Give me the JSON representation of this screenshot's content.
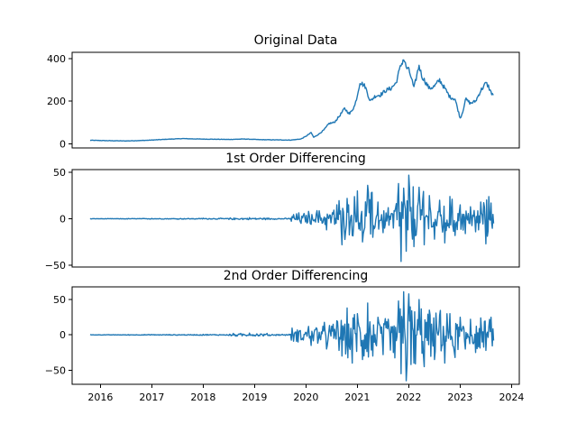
{
  "chart_data": [
    {
      "type": "line",
      "title": "Original Data",
      "xlabel": "",
      "ylabel": "",
      "xlim": [
        2015.45,
        2024.15
      ],
      "ylim": [
        -20,
        430
      ],
      "yticks": [
        0,
        200,
        400
      ],
      "show_xticks": false,
      "series": [
        {
          "name": "Original Data",
          "x": [
            2015.8,
            2016.0,
            2016.2,
            2016.5,
            2016.8,
            2017.0,
            2017.3,
            2017.6,
            2017.9,
            2018.2,
            2018.5,
            2018.8,
            2019.1,
            2019.4,
            2019.7,
            2019.9,
            2020.0,
            2020.1,
            2020.15,
            2020.25,
            2020.35,
            2020.45,
            2020.55,
            2020.65,
            2020.75,
            2020.85,
            2020.95,
            2021.0,
            2021.05,
            2021.15,
            2021.25,
            2021.35,
            2021.45,
            2021.55,
            2021.65,
            2021.75,
            2021.8,
            2021.85,
            2021.9,
            2021.95,
            2022.0,
            2022.05,
            2022.1,
            2022.2,
            2022.25,
            2022.3,
            2022.4,
            2022.5,
            2022.6,
            2022.7,
            2022.8,
            2022.9,
            2023.0,
            2023.05,
            2023.1,
            2023.2,
            2023.3,
            2023.4,
            2023.5,
            2023.55,
            2023.6,
            2023.65
          ],
          "y": [
            16,
            15,
            14,
            13,
            15,
            17,
            21,
            24,
            22,
            21,
            20,
            22,
            19,
            18,
            17,
            22,
            35,
            52,
            30,
            45,
            65,
            95,
            100,
            130,
            165,
            140,
            180,
            230,
            290,
            270,
            200,
            225,
            230,
            250,
            260,
            285,
            330,
            370,
            400,
            360,
            345,
            310,
            260,
            370,
            320,
            300,
            260,
            270,
            300,
            260,
            220,
            210,
            120,
            150,
            210,
            190,
            200,
            250,
            285,
            270,
            240,
            230
          ]
        }
      ]
    },
    {
      "type": "line",
      "title": "1st Order Differencing",
      "xlabel": "",
      "ylabel": "",
      "xlim": [
        2015.45,
        2024.15
      ],
      "ylim": [
        -52,
        53
      ],
      "yticks": [
        -50,
        0,
        50
      ],
      "show_xticks": false,
      "series": [
        {
          "name": "1st Order Differencing",
          "x": [
            2015.8,
            2016.5,
            2017.0,
            2017.5,
            2018.0,
            2018.5,
            2018.9,
            2019.3,
            2019.7,
            2020.05,
            2020.1,
            2020.2,
            2020.4,
            2020.6,
            2020.7,
            2020.8,
            2020.9,
            2021.0,
            2021.1,
            2021.2,
            2021.3,
            2021.4,
            2021.5,
            2021.6,
            2021.7,
            2021.8,
            2021.85,
            2021.9,
            2021.95,
            2022.0,
            2022.1,
            2022.2,
            2022.3,
            2022.4,
            2022.5,
            2022.6,
            2022.7,
            2022.8,
            2022.9,
            2023.0,
            2023.1,
            2023.2,
            2023.3,
            2023.4,
            2023.5,
            2023.6,
            2023.65
          ],
          "y": [
            0.3,
            -0.2,
            0.4,
            -0.5,
            0.6,
            -0.7,
            1.2,
            -0.8,
            0.5,
            8,
            -6,
            5,
            -12,
            15,
            -28,
            22,
            -18,
            30,
            -25,
            36,
            -20,
            18,
            -15,
            12,
            -10,
            38,
            -46,
            33,
            -35,
            47,
            -30,
            34,
            -28,
            25,
            -22,
            20,
            -26,
            24,
            -18,
            15,
            -16,
            13,
            -14,
            18,
            -27,
            17,
            -5
          ]
        }
      ]
    },
    {
      "type": "line",
      "title": "2nd Order Differencing",
      "xlabel": "",
      "ylabel": "",
      "xlim": [
        2015.45,
        2024.15
      ],
      "ylim": [
        -70,
        68
      ],
      "yticks": [
        -50,
        0,
        50
      ],
      "show_xticks": true,
      "xticks": [
        2016,
        2017,
        2018,
        2019,
        2020,
        2021,
        2022,
        2023,
        2024
      ],
      "xticklabels": [
        "2016",
        "2017",
        "2018",
        "2019",
        "2020",
        "2021",
        "2022",
        "2023",
        "2024"
      ],
      "series": [
        {
          "name": "2nd Order Differencing",
          "x": [
            2015.8,
            2016.5,
            2017.0,
            2017.5,
            2018.0,
            2018.5,
            2018.9,
            2019.3,
            2019.7,
            2020.05,
            2020.1,
            2020.2,
            2020.4,
            2020.6,
            2020.7,
            2020.8,
            2020.9,
            2021.0,
            2021.1,
            2021.2,
            2021.3,
            2021.4,
            2021.5,
            2021.6,
            2021.7,
            2021.8,
            2021.85,
            2021.9,
            2021.95,
            2022.0,
            2022.1,
            2022.2,
            2022.3,
            2022.4,
            2022.5,
            2022.6,
            2022.7,
            2022.8,
            2022.9,
            2023.0,
            2023.1,
            2023.2,
            2023.3,
            2023.4,
            2023.5,
            2023.6,
            2023.65
          ],
          "y": [
            0.4,
            -0.3,
            0.6,
            -0.6,
            0.8,
            -0.9,
            2.5,
            -1.2,
            0.8,
            12,
            -15,
            10,
            -20,
            20,
            -30,
            38,
            -40,
            30,
            -35,
            45,
            -30,
            25,
            -28,
            22,
            -25,
            48,
            -55,
            61,
            -65,
            58,
            -40,
            50,
            -45,
            35,
            -35,
            28,
            -40,
            30,
            -32,
            25,
            -20,
            22,
            -25,
            24,
            -22,
            25,
            -8
          ]
        }
      ]
    }
  ],
  "style": {
    "line_color": "#1f77b4",
    "axis_color": "#000000",
    "background": "#ffffff"
  }
}
